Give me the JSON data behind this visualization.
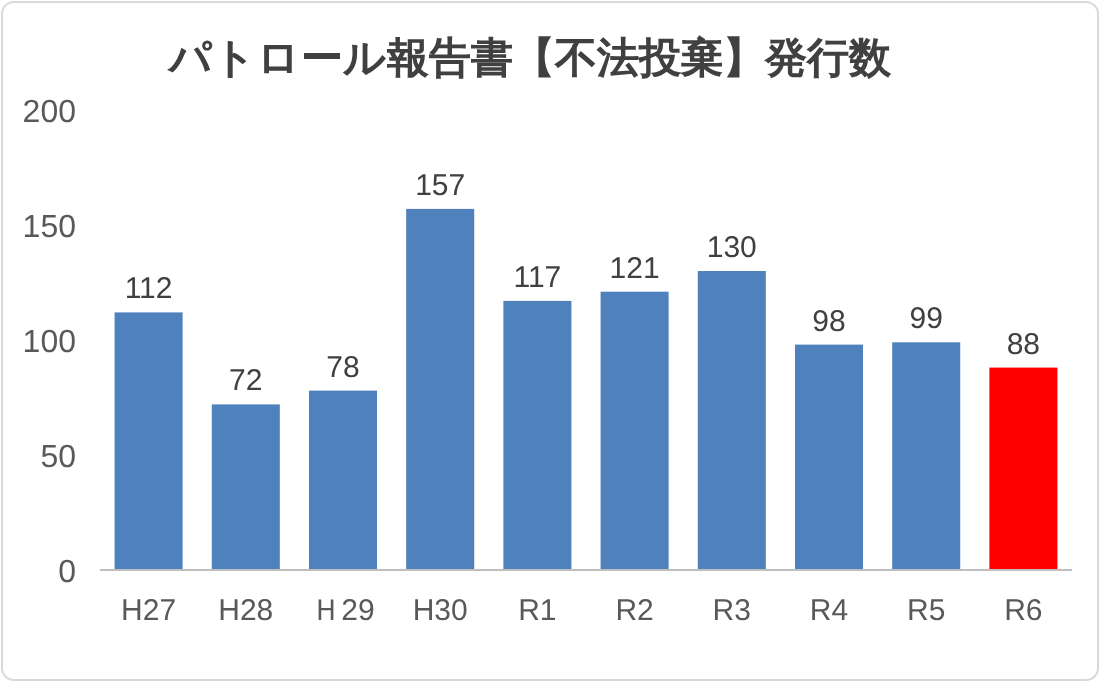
{
  "chart_data": {
    "type": "bar",
    "title": "パトロール報告書【不法投棄】発行数",
    "categories": [
      "H27",
      "H28",
      "Ｈ29",
      "H30",
      "R1",
      "R2",
      "R3",
      "R4",
      "R5",
      "R6"
    ],
    "values": [
      112,
      72,
      78,
      157,
      117,
      121,
      130,
      98,
      99,
      88
    ],
    "colors": [
      "#4f81bd",
      "#4f81bd",
      "#4f81bd",
      "#4f81bd",
      "#4f81bd",
      "#4f81bd",
      "#4f81bd",
      "#4f81bd",
      "#4f81bd",
      "#ff0000"
    ],
    "ylim": [
      0,
      200
    ],
    "yticks": [
      0,
      50,
      100,
      150,
      200
    ],
    "grid": false,
    "data_labels": true
  }
}
